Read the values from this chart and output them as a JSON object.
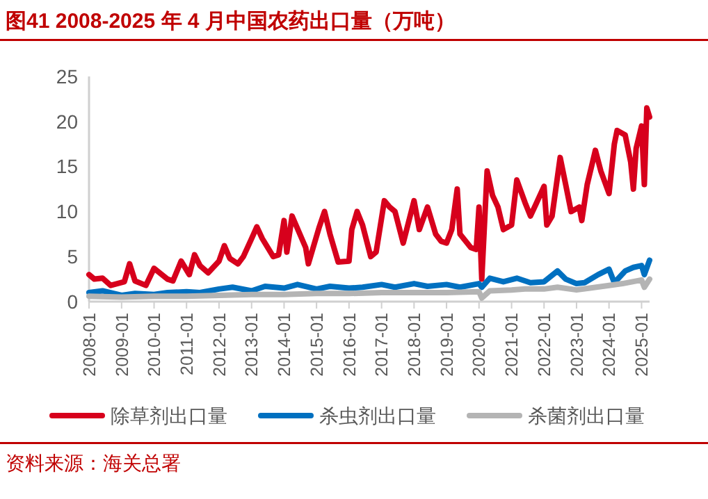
{
  "chart_data": {
    "type": "line",
    "title": "图41  2008-2025 年 4 月中国农药出口量（万吨）",
    "annotations": [
      "资料来源：海关总署"
    ],
    "xlim": [
      "2008-01",
      "2025-04"
    ],
    "xticks": [
      "2008-01",
      "2009-01",
      "2010-01",
      "2011-01",
      "2012-01",
      "2013-01",
      "2014-01",
      "2015-01",
      "2016-01",
      "2017-01",
      "2018-01",
      "2019-01",
      "2020-01",
      "2021-01",
      "2022-01",
      "2023-01",
      "2024-01",
      "2025-01"
    ],
    "ylim": [
      0,
      25
    ],
    "yticks": [
      0,
      5,
      10,
      15,
      20,
      25
    ],
    "grid": false,
    "legend": "bottom",
    "line_style": "solid",
    "series": [
      {
        "name": "除草剂出口量",
        "color": "#d7001c",
        "x": [
          "2008-01",
          "2008-03",
          "2008-06",
          "2008-09",
          "2009-02",
          "2009-04",
          "2009-06",
          "2009-10",
          "2010-01",
          "2010-06",
          "2010-08",
          "2010-11",
          "2011-02",
          "2011-04",
          "2011-06",
          "2011-09",
          "2012-01",
          "2012-03",
          "2012-05",
          "2012-08",
          "2012-10",
          "2013-01",
          "2013-03",
          "2013-05",
          "2013-09",
          "2013-11",
          "2014-01",
          "2014-02",
          "2014-04",
          "2014-09",
          "2014-10",
          "2015-02",
          "2015-04",
          "2015-06",
          "2015-09",
          "2016-01",
          "2016-02",
          "2016-04",
          "2016-06",
          "2016-09",
          "2016-11",
          "2017-02",
          "2017-04",
          "2017-06",
          "2017-09",
          "2018-01",
          "2018-03",
          "2018-06",
          "2018-09",
          "2018-11",
          "2019-01",
          "2019-03",
          "2019-05",
          "2019-06",
          "2019-10",
          "2019-12",
          "2020-01",
          "2020-02",
          "2020-04",
          "2020-06",
          "2020-08",
          "2020-10",
          "2021-01",
          "2021-03",
          "2021-06",
          "2021-08",
          "2021-10",
          "2022-01",
          "2022-02",
          "2022-04",
          "2022-07",
          "2022-09",
          "2022-11",
          "2023-02",
          "2023-03",
          "2023-05",
          "2023-08",
          "2023-10",
          "2024-01",
          "2024-03",
          "2024-04",
          "2024-07",
          "2024-09",
          "2024-10",
          "2024-11",
          "2025-01",
          "2025-02",
          "2025-03",
          "2025-04"
        ],
        "values": [
          3.0,
          2.5,
          2.6,
          1.8,
          2.2,
          4.2,
          2.3,
          1.8,
          3.7,
          2.5,
          2.3,
          4.5,
          3.0,
          5.2,
          4.0,
          3.2,
          4.5,
          6.2,
          4.8,
          4.2,
          5.0,
          7.0,
          8.3,
          7.0,
          5.0,
          5.2,
          9.0,
          5.5,
          9.5,
          6.0,
          4.2,
          8.3,
          10.0,
          7.5,
          4.4,
          4.5,
          8.0,
          10.0,
          8.5,
          5.0,
          5.5,
          11.2,
          10.5,
          10.0,
          6.5,
          11.2,
          8.0,
          10.5,
          7.5,
          6.7,
          6.5,
          8.0,
          12.5,
          7.5,
          6.0,
          5.8,
          10.5,
          2.5,
          14.5,
          11.8,
          10.5,
          8.0,
          8.5,
          13.5,
          11.0,
          9.5,
          10.8,
          12.8,
          8.5,
          9.5,
          16.0,
          13.0,
          10.0,
          10.5,
          9.0,
          13.0,
          16.8,
          14.5,
          12.0,
          17.5,
          19.0,
          18.5,
          15.5,
          12.5,
          17.0,
          19.5,
          13.0,
          21.5,
          20.5
        ]
      },
      {
        "name": "杀虫剂出口量",
        "color": "#0070c0",
        "x": [
          "2008-01",
          "2008-06",
          "2009-01",
          "2009-06",
          "2010-01",
          "2010-06",
          "2011-01",
          "2011-06",
          "2012-01",
          "2012-06",
          "2013-01",
          "2013-06",
          "2014-01",
          "2014-06",
          "2015-01",
          "2015-06",
          "2016-01",
          "2016-06",
          "2017-01",
          "2017-06",
          "2018-01",
          "2018-06",
          "2019-01",
          "2019-06",
          "2020-01",
          "2020-02",
          "2020-05",
          "2020-10",
          "2021-03",
          "2021-08",
          "2022-01",
          "2022-06",
          "2022-09",
          "2023-01",
          "2023-04",
          "2023-09",
          "2024-01",
          "2024-03",
          "2024-07",
          "2024-10",
          "2025-01",
          "2025-02",
          "2025-04"
        ],
        "values": [
          1.0,
          1.2,
          0.7,
          0.9,
          0.8,
          1.0,
          1.1,
          1.0,
          1.4,
          1.6,
          1.2,
          1.7,
          1.5,
          1.9,
          1.4,
          1.7,
          1.5,
          1.6,
          1.9,
          1.6,
          2.0,
          1.7,
          1.9,
          1.6,
          2.0,
          1.6,
          2.6,
          2.2,
          2.6,
          2.1,
          2.2,
          3.4,
          2.5,
          2.0,
          2.1,
          3.0,
          3.6,
          2.1,
          3.4,
          3.8,
          4.0,
          3.0,
          4.6
        ]
      },
      {
        "name": "杀菌剂出口量",
        "color": "#b4b4b4",
        "x": [
          "2008-01",
          "2009-01",
          "2010-01",
          "2011-01",
          "2012-01",
          "2013-01",
          "2014-01",
          "2015-01",
          "2016-01",
          "2017-01",
          "2018-01",
          "2019-01",
          "2020-01",
          "2020-02",
          "2020-05",
          "2021-01",
          "2021-06",
          "2022-01",
          "2022-06",
          "2023-01",
          "2023-06",
          "2024-01",
          "2024-06",
          "2025-01",
          "2025-02",
          "2025-04"
        ],
        "values": [
          0.6,
          0.5,
          0.6,
          0.6,
          0.7,
          0.8,
          0.8,
          0.9,
          0.9,
          1.0,
          1.0,
          1.0,
          1.1,
          0.4,
          1.2,
          1.3,
          1.4,
          1.4,
          1.6,
          1.3,
          1.5,
          1.8,
          2.0,
          2.4,
          1.6,
          2.5
        ]
      }
    ]
  }
}
